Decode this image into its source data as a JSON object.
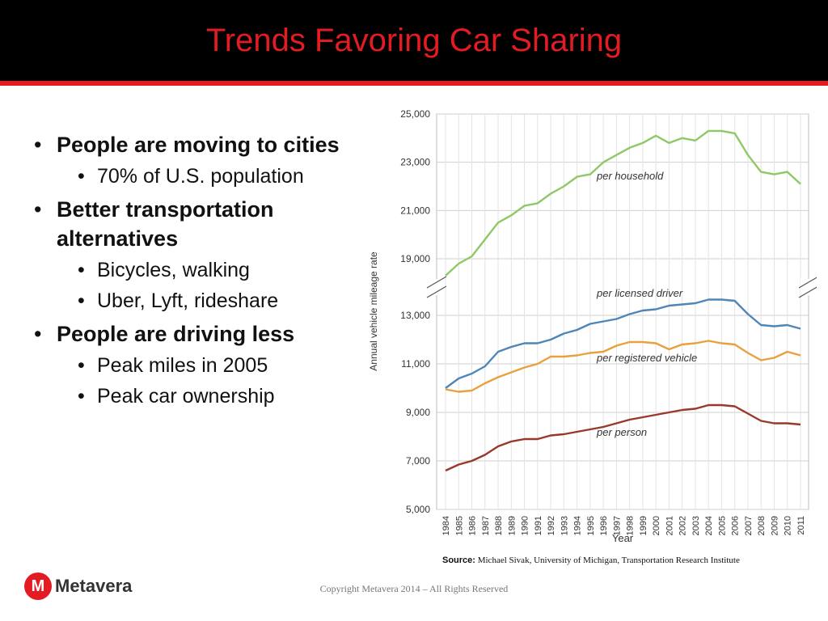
{
  "slide": {
    "title": "Trends Favoring Car Sharing",
    "bullets": [
      {
        "text": "People are moving to cities",
        "sub": [
          "70% of U.S. population"
        ]
      },
      {
        "text": "Better transportation alternatives",
        "sub": [
          "Bicycles, walking",
          "Uber, Lyft, rideshare"
        ]
      },
      {
        "text": "People are driving less",
        "sub": [
          "Peak miles in 2005",
          "Peak car ownership"
        ]
      }
    ],
    "source_label": "Source:",
    "source_text": "Michael Sivak, University of Michigan, Transportation Research Institute",
    "logo_mark": "M",
    "logo_text": "Metavera",
    "copyright": "Copyright Metavera 2014 – All Rights Reserved"
  },
  "colors": {
    "accent": "#e31b23",
    "header_bg": "#000000",
    "per_household": "#8fc866",
    "per_licensed_driver": "#4f86b8",
    "per_registered_vehicle": "#e8a13c",
    "per_person": "#99392c"
  },
  "chart_data": {
    "type": "line",
    "xlabel": "Year",
    "ylabel": "Annual vehicle mileage rate",
    "axis_break": true,
    "y_ticks_lower": [
      5000,
      7000,
      9000,
      11000,
      13000
    ],
    "y_ticks_upper": [
      19000,
      21000,
      23000,
      25000
    ],
    "y_tick_labels": [
      "5,000",
      "7,000",
      "9,000",
      "11,000",
      "13,000",
      "19,000",
      "21,000",
      "23,000",
      "25,000"
    ],
    "grid": true,
    "x": [
      "1984",
      "1985",
      "1986",
      "1987",
      "1988",
      "1989",
      "1990",
      "1991",
      "1992",
      "1993",
      "1994",
      "1995",
      "1996",
      "1997",
      "1998",
      "1999",
      "2000",
      "2001",
      "2002",
      "2003",
      "2004",
      "2005",
      "2006",
      "2007",
      "2008",
      "2009",
      "2010",
      "2011"
    ],
    "series": [
      {
        "name": "per household",
        "values": [
          18300,
          18800,
          19100,
          19800,
          20500,
          20800,
          21200,
          21300,
          21700,
          22000,
          22400,
          22500,
          23000,
          23300,
          23600,
          23800,
          24100,
          23800,
          24000,
          23900,
          24300,
          24300,
          24200,
          23300,
          22600,
          22500,
          22600,
          22100
        ]
      },
      {
        "name": "per licensed driver",
        "values": [
          10000,
          10400,
          10600,
          10900,
          11500,
          11700,
          11850,
          11850,
          12000,
          12250,
          12400,
          12650,
          12750,
          12850,
          13050,
          13200,
          13250,
          13400,
          13450,
          13500,
          13650,
          13650,
          13600,
          13050,
          12600,
          12550,
          12600,
          12450
        ]
      },
      {
        "name": "per registered vehicle",
        "values": [
          9950,
          9850,
          9900,
          10200,
          10450,
          10650,
          10850,
          11000,
          11300,
          11300,
          11350,
          11450,
          11500,
          11750,
          11900,
          11900,
          11850,
          11600,
          11800,
          11850,
          11950,
          11850,
          11800,
          11450,
          11150,
          11250,
          11500,
          11350
        ]
      },
      {
        "name": "per person",
        "values": [
          6600,
          6850,
          7000,
          7250,
          7600,
          7800,
          7900,
          7900,
          8050,
          8100,
          8200,
          8300,
          8400,
          8550,
          8700,
          8800,
          8900,
          9000,
          9100,
          9150,
          9300,
          9300,
          9250,
          8950,
          8650,
          8550,
          8550,
          8500
        ]
      }
    ]
  }
}
